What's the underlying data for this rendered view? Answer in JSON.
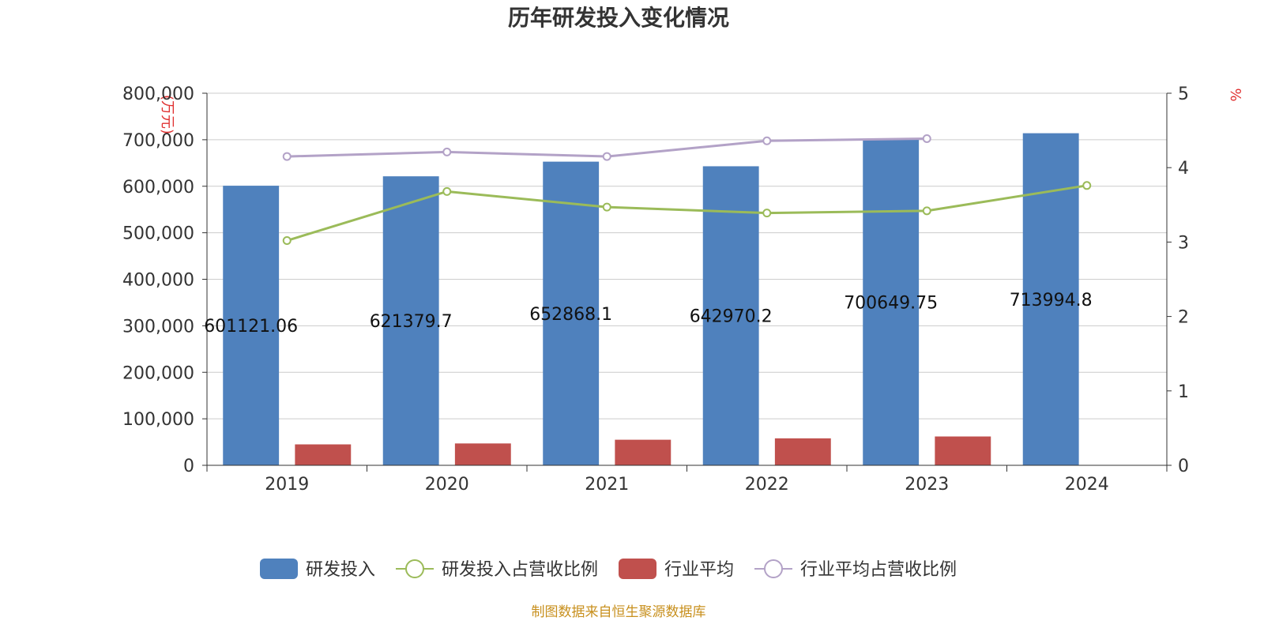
{
  "chart_data": {
    "type": "bar",
    "title": "历年研发投入变化情况",
    "y_left_unit": "(万元)",
    "y_right_unit": "%",
    "categories": [
      "2019",
      "2020",
      "2021",
      "2022",
      "2023",
      "2024"
    ],
    "y_left_ticks": [
      "0",
      "100,000",
      "200,000",
      "300,000",
      "400,000",
      "500,000",
      "600,000",
      "700,000",
      "800,000"
    ],
    "y_right_ticks": [
      "0",
      "1",
      "2",
      "3",
      "4",
      "5"
    ],
    "ylim_left": [
      0,
      800000
    ],
    "ylim_right": [
      0,
      5
    ],
    "grid": true,
    "legend_position": "bottom",
    "series": [
      {
        "name": "研发投入",
        "kind": "bar",
        "axis": "left",
        "color": "#4f81bd",
        "values": [
          601121.06,
          621379.7,
          652868.1,
          642970.2,
          700649.75,
          713994.8
        ],
        "labels": [
          "601121.06",
          "621379.7",
          "652868.1",
          "642970.2",
          "700649.75",
          "713994.8"
        ]
      },
      {
        "name": "研发投入占营收比例",
        "kind": "line",
        "axis": "right",
        "color": "#9bbb59",
        "values": [
          3.02,
          3.68,
          3.47,
          3.39,
          3.42,
          3.76
        ]
      },
      {
        "name": "行业平均",
        "kind": "bar",
        "axis": "left",
        "color": "#c0504d",
        "values": [
          45000,
          47000,
          55000,
          58000,
          62000,
          null
        ]
      },
      {
        "name": "行业平均占营收比例",
        "kind": "line",
        "axis": "right",
        "color": "#b3a2c7",
        "values": [
          4.15,
          4.21,
          4.15,
          4.36,
          4.39,
          null
        ]
      }
    ],
    "source": "制图数据来自恒生聚源数据库"
  }
}
